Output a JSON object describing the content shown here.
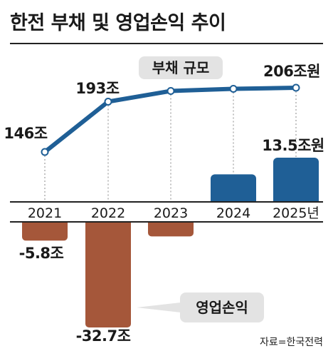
{
  "title": "한전 부채 및 영업손익 추이",
  "source": "자료=한국전력",
  "colors": {
    "line": "#1f5f96",
    "positive_bar": "#1f5f96",
    "negative_bar": "#a5573a",
    "axis": "#222222",
    "guide": "#888888"
  },
  "chart_data": [
    {
      "type": "line",
      "series_label": "부채 규모",
      "categories": [
        "2021",
        "2022",
        "2023",
        "2024",
        "2025년"
      ],
      "values": [
        146,
        193,
        203,
        205,
        206
      ],
      "labels": [
        {
          "index": 0,
          "text": "146조"
        },
        {
          "index": 1,
          "text": "193조"
        },
        {
          "index": 4,
          "text": "206조원"
        }
      ],
      "unit": "조원"
    },
    {
      "type": "bar",
      "series_label": "영업손익",
      "categories": [
        "2021",
        "2022",
        "2023",
        "2024",
        "2025년"
      ],
      "values": [
        -5.8,
        -32.7,
        -4.5,
        8.4,
        13.5
      ],
      "labels": [
        {
          "index": 0,
          "text": "-5.8조"
        },
        {
          "index": 1,
          "text": "-32.7조"
        },
        {
          "index": 4,
          "text": "13.5조원"
        }
      ],
      "unit": "조원"
    }
  ]
}
